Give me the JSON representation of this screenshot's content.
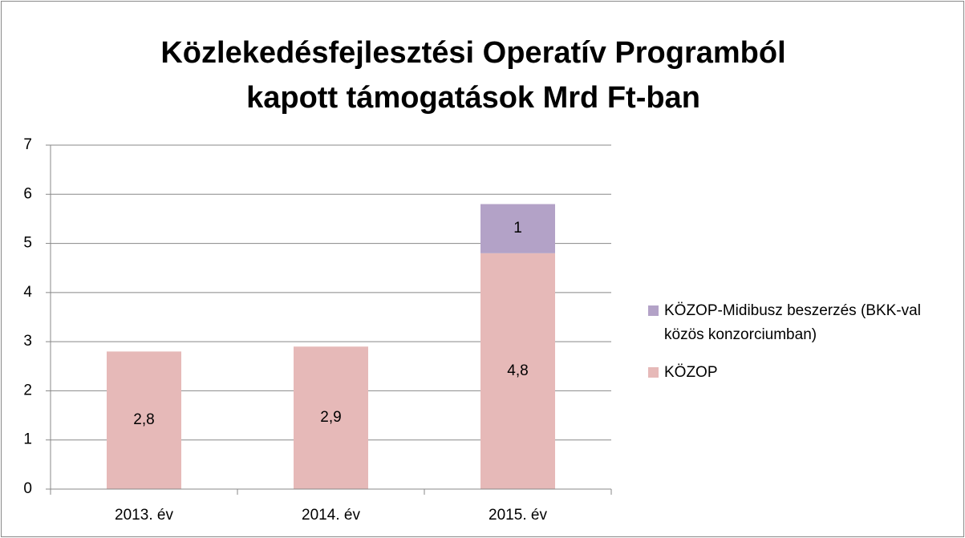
{
  "chart_data": {
    "type": "stacked_bar",
    "title": "Közlekedésfejlesztési Operatív Programból kapott támogatások  Mrd Ft-ban",
    "categories": [
      "2013. év",
      "2014. év",
      "2015. év"
    ],
    "series": [
      {
        "name": "KÖZOP",
        "color": "#e6b9b8",
        "values": [
          2.8,
          2.9,
          4.8
        ],
        "value_labels": [
          "2,8",
          "2,9",
          "4,8"
        ]
      },
      {
        "name": "KÖZOP-Midibusz beszerzés (BKK-val közös konzorciumban)",
        "color": "#b3a2c7",
        "values": [
          null,
          null,
          1
        ],
        "value_labels": [
          null,
          null,
          "1"
        ]
      }
    ],
    "ylim": [
      0,
      7
    ],
    "yticks": [
      0,
      1,
      2,
      3,
      4,
      5,
      6,
      7
    ],
    "grid": true,
    "legend": "right"
  }
}
